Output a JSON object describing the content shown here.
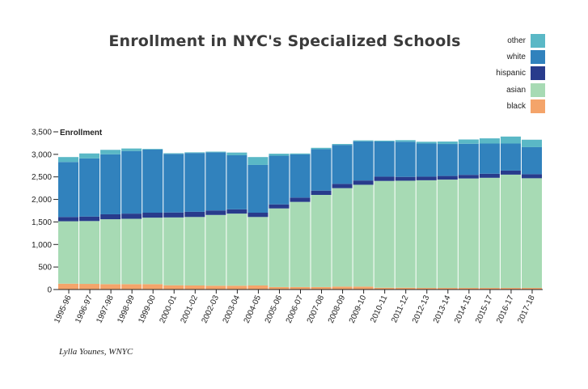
{
  "chart_data": {
    "type": "bar",
    "stacked": true,
    "title": "Enrollment in NYC's Specialized Schools",
    "ylabel": "Enrollment",
    "xlabel": "",
    "ylim": [
      0,
      3500
    ],
    "yticks": [
      0,
      500,
      1000,
      1500,
      2000,
      2500,
      3000,
      3500
    ],
    "ytick_labels": [
      "0",
      "500",
      "1,000",
      "1,500",
      "2,000",
      "2,500",
      "3,000",
      "3,500"
    ],
    "grid": false,
    "legend_position": "top-right",
    "categories": [
      "1995-96",
      "1996-97",
      "1997-98",
      "1998-99",
      "1999-00",
      "2000-01",
      "2001-02",
      "2002-03",
      "2003-04",
      "2004-05",
      "2005-06",
      "2006-07",
      "2007-08",
      "2008-09",
      "2009-10",
      "2010-11",
      "2011-12",
      "2012-13",
      "2013-14",
      "2014-15",
      "2015-17",
      "2016-17",
      "2017-18"
    ],
    "series": [
      {
        "name": "black",
        "color": "#f4a46a",
        "values": [
          130,
          125,
          120,
          120,
          120,
          95,
          90,
          85,
          85,
          90,
          55,
          55,
          55,
          65,
          65,
          40,
          40,
          35,
          35,
          35,
          35,
          35,
          35
        ]
      },
      {
        "name": "asian",
        "color": "#a7dab4",
        "values": [
          1385,
          1395,
          1440,
          1450,
          1475,
          1505,
          1520,
          1570,
          1600,
          1520,
          1745,
          1890,
          2045,
          2185,
          2260,
          2370,
          2375,
          2390,
          2405,
          2430,
          2445,
          2515,
          2435
        ]
      },
      {
        "name": "hispanic",
        "color": "#283b8c",
        "values": [
          95,
          100,
          110,
          115,
          110,
          110,
          115,
          100,
          95,
          95,
          90,
          95,
          95,
          95,
          95,
          95,
          85,
          80,
          80,
          80,
          90,
          90,
          90
        ]
      },
      {
        "name": "white",
        "color": "#3182bd",
        "values": [
          1220,
          1290,
          1330,
          1390,
          1400,
          1300,
          1305,
          1290,
          1200,
          1060,
          1080,
          960,
          920,
          865,
          870,
          780,
          780,
          735,
          710,
          690,
          670,
          600,
          600
        ]
      },
      {
        "name": "other",
        "color": "#5ab8c6",
        "values": [
          110,
          110,
          100,
          55,
          15,
          15,
          15,
          15,
          60,
          175,
          45,
          20,
          30,
          20,
          20,
          20,
          35,
          40,
          55,
          95,
          115,
          155,
          165
        ]
      }
    ]
  },
  "legend": {
    "items": [
      {
        "label": "other",
        "color": "#5ab8c6"
      },
      {
        "label": "white",
        "color": "#3182bd"
      },
      {
        "label": "hispanic",
        "color": "#283b8c"
      },
      {
        "label": "asian",
        "color": "#a7dab4"
      },
      {
        "label": "black",
        "color": "#f4a46a"
      }
    ]
  },
  "credit": "Lylla Younes, WNYC"
}
